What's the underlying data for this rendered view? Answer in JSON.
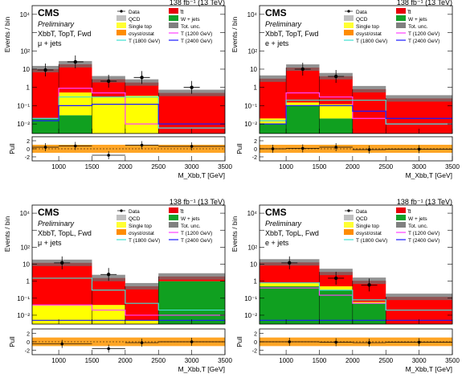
{
  "legend_items": [
    {
      "label": "Data",
      "swatch": "data"
    },
    {
      "label": "t̅t",
      "swatch": "#e8000b"
    },
    {
      "label": "QCD",
      "swatch": "#c0c0c0"
    },
    {
      "label": "W + jets",
      "swatch": "#12a12a"
    },
    {
      "label": "Single top",
      "swatch": "#ffff33"
    },
    {
      "label": "Tot. unc.",
      "swatch": "#808080"
    },
    {
      "label": "σsyst/σstat",
      "swatch": "#ff8c00"
    },
    {
      "label": "T (1200 GeV)",
      "swatch": "#ff3fff"
    },
    {
      "label": "T (1800 GeV)",
      "swatch": "#40e0d0"
    },
    {
      "label": "T (2400 GeV)",
      "swatch": "#1a1aff"
    }
  ],
  "colors": {
    "ttbar": "#ff0000",
    "qcd": "#c8c8c8",
    "wjets": "#10a020",
    "singletop": "#ffff00",
    "unc": "#6e6e6e",
    "ratio_band": "#ff9500",
    "t1200": "#ff40ff",
    "t1800": "#40e0d0",
    "t2400": "#1a1aff"
  },
  "chart_data": [
    {
      "type": "bar",
      "title": "CMS",
      "subtitle": "Preliminary",
      "lumi": "138 fb⁻¹ (13 TeV)",
      "channel": "XbbT, TopT, Fwd",
      "lepton": "μ + jets",
      "ylabel": "Events / bin",
      "xlabel": "M_Xbb,T [GeV]",
      "ratio_ylabel": "Pull",
      "x_ticks": [
        "1000",
        "1500",
        "2000",
        "2500",
        "3000",
        "3500"
      ],
      "y_ticks": [
        "10²",
        "10",
        "1",
        "10⁻¹",
        "10⁻²"
      ],
      "y_top_label": "10⁴",
      "ratio_ticks": [
        "2",
        "0",
        "-2"
      ],
      "bins": [
        600,
        1000,
        1500,
        2000,
        2500,
        3500
      ],
      "ylim": [
        0.003,
        30000
      ],
      "stack": {
        "wjets": [
          0.02,
          0.03,
          0,
          0,
          0
        ],
        "singletop": [
          0,
          0.5,
          0.3,
          0.35,
          0
        ],
        "ttbar": [
          10,
          18,
          2.5,
          1.5,
          0.5
        ]
      },
      "signals": {
        "t1200": [
          0.02,
          0.9,
          0.5,
          0.01,
          0.006
        ],
        "t1800": [
          0.02,
          0.3,
          0.3,
          0.3,
          0.006
        ],
        "t2400": [
          0.015,
          0.1,
          0.12,
          0.12,
          0.01
        ]
      },
      "data": {
        "x": [
          800,
          1250,
          1750,
          2250,
          3000
        ],
        "y": [
          9,
          25,
          2.2,
          3.5,
          1
        ]
      },
      "pulls": [
        0.4,
        0.7,
        -1.6,
        0.9,
        0.6
      ]
    },
    {
      "type": "bar",
      "title": "CMS",
      "subtitle": "Preliminary",
      "lumi": "138 fb⁻¹ (13 TeV)",
      "channel": "XbbT, TopT, Fwd",
      "lepton": "e + jets",
      "ylabel": "Events / bin",
      "xlabel": "M_Xbb,T [GeV]",
      "ratio_ylabel": "Pull",
      "x_ticks": [
        "1000",
        "1500",
        "2000",
        "2500",
        "3000",
        "3500"
      ],
      "y_ticks": [
        "10²",
        "10",
        "1",
        "10⁻¹",
        "10⁻²"
      ],
      "y_top_label": "10⁴",
      "ratio_ticks": [
        "2",
        "0",
        "-2"
      ],
      "bins": [
        600,
        1000,
        1500,
        2000,
        2500,
        3500
      ],
      "ylim": [
        0.003,
        30000
      ],
      "stack": {
        "wjets": [
          0.01,
          0.1,
          0.02,
          0,
          0
        ],
        "singletop": [
          0.01,
          0.05,
          0.1,
          0,
          0
        ],
        "ttbar": [
          3,
          12,
          4,
          0.8,
          0.25
        ]
      },
      "signals": {
        "t1200": [
          0.015,
          0.5,
          0.3,
          0.02,
          0.01
        ],
        "t1800": [
          0.015,
          0.2,
          0.2,
          0.2,
          0.01
        ],
        "t2400": [
          0.01,
          0.1,
          0.1,
          0.05,
          0.02
        ]
      },
      "data": {
        "x": [
          1250,
          1750
        ],
        "y": [
          10,
          4
        ]
      },
      "pulls": [
        0.0,
        0.1,
        0.4,
        -0.2,
        -0.1
      ]
    },
    {
      "type": "bar",
      "title": "CMS",
      "subtitle": "Preliminary",
      "lumi": "138 fb⁻¹ (13 TeV)",
      "channel": "XbbT, TopL, Fwd",
      "lepton": "μ + jets",
      "ylabel": "Events / bin",
      "xlabel": "M_Xbb,T [GeV]",
      "ratio_ylabel": "Pull",
      "x_ticks": [
        "1000",
        "1500",
        "2000",
        "2500",
        "3000",
        "3500"
      ],
      "y_ticks": [
        "10²",
        "10",
        "1",
        "10⁻¹",
        "10⁻²"
      ],
      "y_top_label": "10⁴",
      "ratio_ticks": [
        "2",
        "0",
        "-2"
      ],
      "bins": [
        600,
        1500,
        2000,
        2500,
        3500
      ],
      "ylim": [
        0.003,
        30000
      ],
      "stack": {
        "wjets": [
          0,
          0,
          0,
          1
        ],
        "singletop": [
          0.04,
          0.04,
          0.005,
          0
        ],
        "ttbar": [
          12,
          1.5,
          0.5,
          0.9
        ]
      },
      "signals": {
        "t1200": [
          0.04,
          0.02,
          0.01,
          0.01
        ],
        "t1800": [
          1.5,
          0.3,
          0.05,
          0.02
        ],
        "t2400": [
          0.005,
          0.005,
          0.005,
          0.005
        ]
      },
      "data": {
        "x": [
          1050,
          1750
        ],
        "y": [
          12,
          2.5
        ]
      },
      "pulls": [
        -0.5,
        -1.6,
        -0.2,
        0.0
      ]
    },
    {
      "type": "bar",
      "title": "CMS",
      "subtitle": "Preliminary",
      "lumi": "138 fb⁻¹ (13 TeV)",
      "channel": "XbbT, TopL, Fwd",
      "lepton": "e + jets",
      "ylabel": "Events / bin",
      "xlabel": "M_Xbb,T [GeV]",
      "ratio_ylabel": "Pull",
      "x_ticks": [
        "1000",
        "1500",
        "2000",
        "2500",
        "3000",
        "3500"
      ],
      "y_ticks": [
        "10²",
        "10",
        "1",
        "10⁻¹",
        "10⁻²"
      ],
      "y_top_label": "10⁴",
      "ratio_ticks": [
        "2",
        "0",
        "-2"
      ],
      "bins": [
        600,
        1500,
        2000,
        2500,
        3500
      ],
      "ylim": [
        0.003,
        30000
      ],
      "stack": {
        "wjets": [
          0.5,
          0.3,
          0.05,
          0
        ],
        "singletop": [
          0.3,
          0.2,
          0.01,
          0
        ],
        "ttbar": [
          12,
          3,
          1,
          0.12
        ]
      },
      "signals": {
        "t1200": [
          0.4,
          0.15,
          0.05,
          0.02
        ],
        "t1800": [
          0.8,
          0.3,
          0.08,
          0.02
        ],
        "t2400": [
          0.005,
          0.005,
          0.005,
          0.005
        ]
      },
      "data": {
        "x": [
          1050,
          1750,
          2250
        ],
        "y": [
          12,
          1.5,
          0.6
        ]
      },
      "pulls": [
        0.0,
        -0.1,
        -0.2,
        -0.1
      ]
    }
  ]
}
